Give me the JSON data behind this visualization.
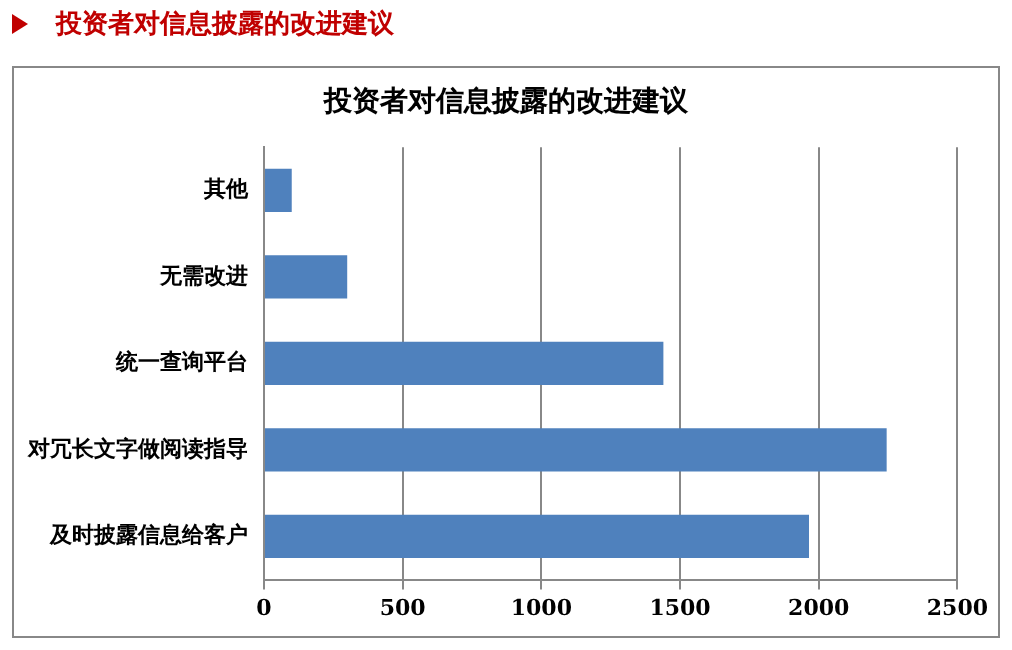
{
  "chart_data": {
    "type": "bar",
    "orientation": "horizontal",
    "subtitle": "投资者对信息披露的改进建议",
    "title": "投资者对信息披露的改进建议",
    "categories": [
      "其他",
      "无需改进",
      "统一查询平台",
      "对冗长文字做阅读指导",
      "及时披露信息给客户"
    ],
    "values": [
      100,
      300,
      1440,
      2245,
      1965
    ],
    "color": "#4f81bd",
    "xlim": [
      0,
      2500
    ],
    "xticks": [
      0,
      500,
      1000,
      1500,
      2000,
      2500
    ],
    "grid": "x"
  }
}
